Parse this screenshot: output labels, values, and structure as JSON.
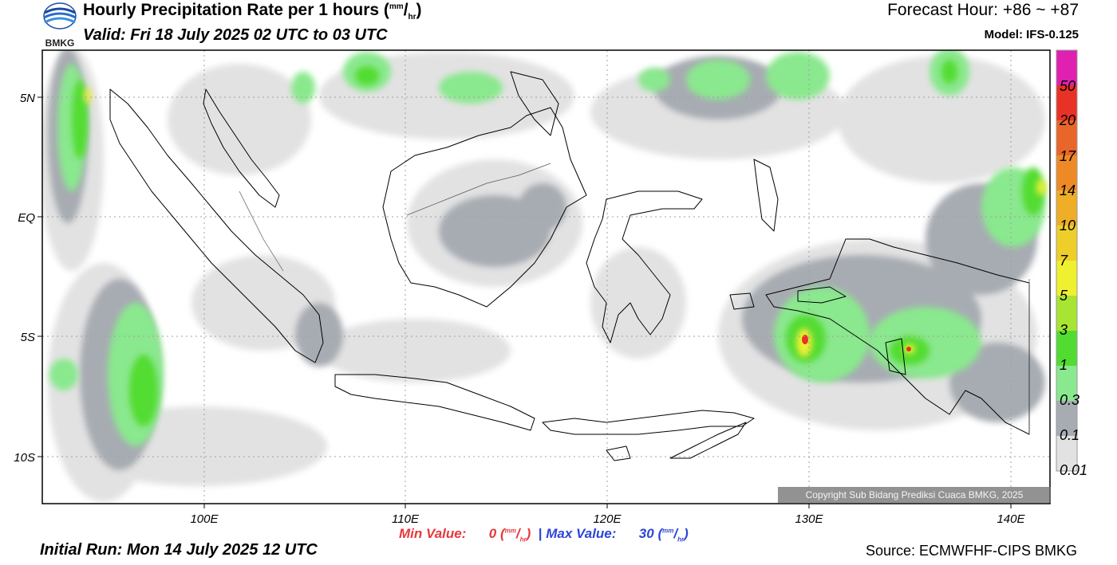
{
  "header": {
    "logo_text": "BMKG",
    "title_main": "Hourly Precipitation Rate per 1 hours (",
    "title_unit_num": "mm",
    "title_unit_sep": "/",
    "title_unit_den": "hr",
    "title_close": ")",
    "valid": "Valid: Fri 18 July 2025 02 UTC to 03 UTC",
    "forecast_hour": "Forecast Hour: +86 ~ +87",
    "model": "Model: IFS-0.125"
  },
  "axes": {
    "lat_labels": [
      "5N",
      "EQ",
      "5S",
      "10S"
    ],
    "lat_values": [
      5,
      0,
      -5,
      -10
    ],
    "lon_labels": [
      "100E",
      "110E",
      "120E",
      "130E",
      "140E"
    ],
    "lon_values": [
      100,
      110,
      120,
      130,
      140
    ],
    "lon_range": [
      92,
      142
    ],
    "lat_range": [
      -12,
      7
    ]
  },
  "colorbar": {
    "labels": [
      "50",
      "20",
      "17",
      "14",
      "10",
      "7",
      "5",
      "3",
      "1",
      "0.3",
      "0.1",
      "0.01"
    ],
    "colors": [
      "#e020b0",
      "#e83226",
      "#e8662a",
      "#ee8a26",
      "#eeae26",
      "#eecf2a",
      "#eef030",
      "#a8e432",
      "#52dc32",
      "#8ae88e",
      "#a7acb2",
      "#e2e2e2"
    ]
  },
  "footer": {
    "min_label": "Min Value:",
    "min_value": "0",
    "max_label": "Max Value:",
    "max_value": "30",
    "unit_num": "mm",
    "unit_den": "hr",
    "separator": "|",
    "initial_run": "Initial Run: Mon 14 July 2025 12 UTC",
    "source": "Source: ECMWFHF-CIPS BMKG",
    "copyright": "Copyright Sub Bidang Prediksi Cuaca BMKG, 2025"
  }
}
